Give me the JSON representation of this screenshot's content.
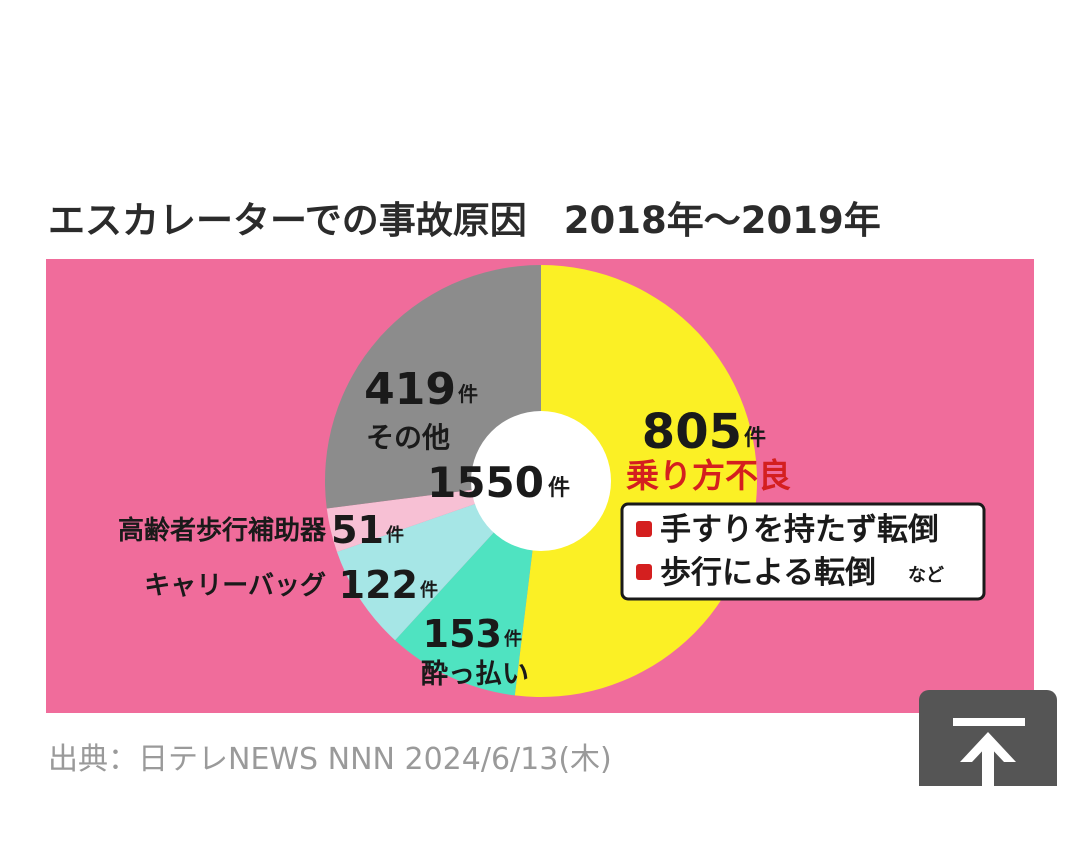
{
  "title": "エスカレーターでの事故原因　2018年〜2019年",
  "source": "出典：日テレNEWS NNN 2024/6/13(木)",
  "icons": {
    "scroll_top": "arrow-up-to-line-icon",
    "bullet": "red-square-bullet-icon"
  },
  "colors": {
    "background": "#f06c9b",
    "improper_riding": "#fbf025",
    "drunk": "#4fe3c1",
    "carry_bag": "#a6e6e6",
    "walking_aid": "#f7c0d4",
    "other": "#8c8c8c"
  },
  "chart_data": {
    "type": "pie",
    "title": "エスカレーターでの事故原因　2018年〜2019年",
    "total": 1550,
    "total_label": "1550",
    "unit": "件",
    "slices": [
      {
        "label": "乗り方不良",
        "value": 805,
        "value_text": "805"
      },
      {
        "label": "酔っ払い",
        "value": 153,
        "value_text": "153"
      },
      {
        "label": "キャリーバッグ",
        "value": 122,
        "value_text": "122"
      },
      {
        "label": "高齢者歩行補助器",
        "value": 51,
        "value_text": "51"
      },
      {
        "label": "その他",
        "value": 419,
        "value_text": "419"
      }
    ],
    "callout": {
      "items": [
        "手すりを持たず転倒",
        "歩行による転倒"
      ],
      "suffix": "など"
    }
  }
}
